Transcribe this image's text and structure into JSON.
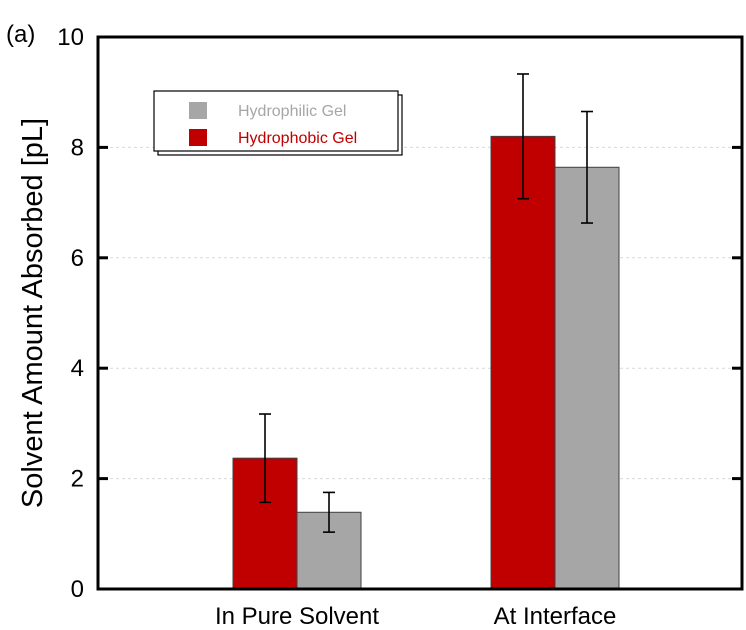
{
  "panel_label": "(a)",
  "chart_data": {
    "type": "bar",
    "ylabel": "Solvent Amount Absorbed [pL]",
    "ylim": [
      0,
      10
    ],
    "yticks": [
      0,
      2,
      4,
      6,
      8,
      10
    ],
    "grid": true,
    "legend_position": "top-left",
    "categories": [
      "In Pure Solvent",
      "At Interface"
    ],
    "series": [
      {
        "name": "Hydrophobic Gel",
        "color": "#c00000",
        "values": [
          2.37,
          8.2
        ],
        "errors": [
          0.8,
          1.13
        ]
      },
      {
        "name": "Hydrophilic Gel",
        "color": "#a6a6a6",
        "values": [
          1.39,
          7.64
        ],
        "errors": [
          0.36,
          1.01
        ]
      }
    ],
    "legend_order": [
      "Hydrophilic Gel",
      "Hydrophobic Gel"
    ]
  }
}
